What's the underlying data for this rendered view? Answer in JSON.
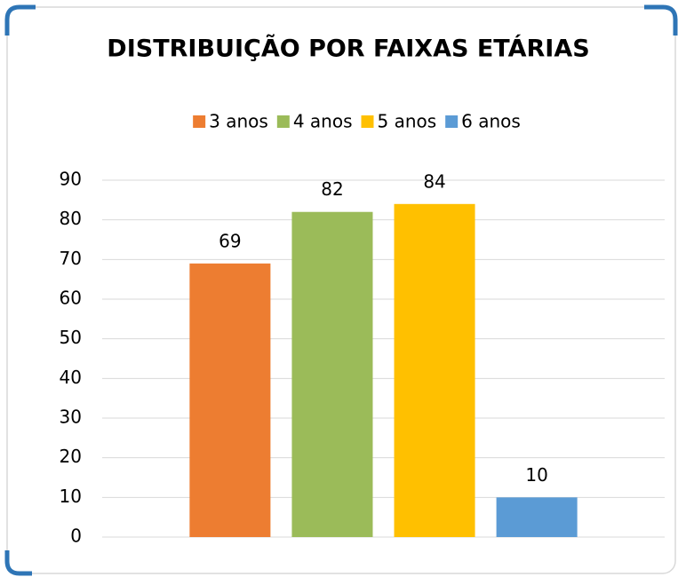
{
  "chart_data": {
    "type": "bar",
    "title": "DISTRIBUIÇÃO POR FAIXAS ETÁRIAS",
    "categories": [
      null
    ],
    "series": [
      {
        "name": "3 anos",
        "color": "#ED7D31",
        "values": [
          69
        ]
      },
      {
        "name": "4 anos",
        "color": "#9BBB59",
        "values": [
          82
        ]
      },
      {
        "name": "5 anos",
        "color": "#FFC000",
        "values": [
          84
        ]
      },
      {
        "name": "6 anos",
        "color": "#5B9BD5",
        "values": [
          10
        ]
      }
    ],
    "ylim": [
      0,
      90
    ],
    "yticks": [
      0,
      10,
      20,
      30,
      40,
      50,
      60,
      70,
      80,
      90
    ],
    "grid": true,
    "legend": "top"
  }
}
